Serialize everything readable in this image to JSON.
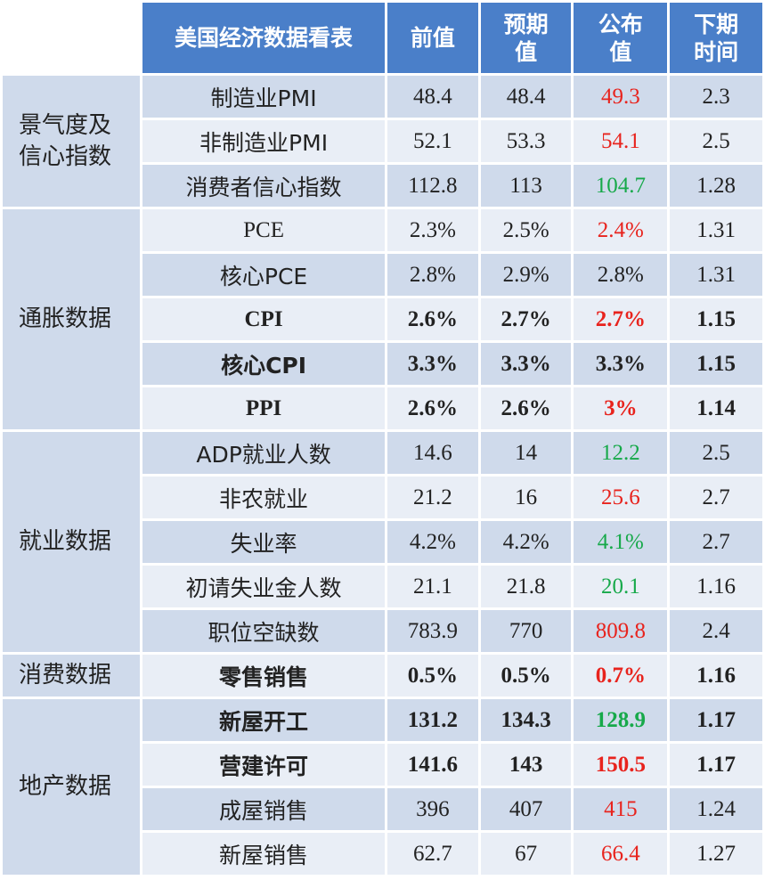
{
  "headers": [
    "美国经济数据看表",
    "前值",
    "预期\n值",
    "公布\n值",
    "下期\n时间"
  ],
  "groups": [
    {
      "name": "景气度及\n信心指数",
      "rows": [
        {
          "indicator": "制造业PMI",
          "prev": "48.4",
          "exp": "48.4",
          "actual": "49.3",
          "next": "2.3",
          "color": "red",
          "bold": false
        },
        {
          "indicator": "非制造业PMI",
          "prev": "52.1",
          "exp": "53.3",
          "actual": "54.1",
          "next": "2.5",
          "color": "red",
          "bold": false
        },
        {
          "indicator": "消费者信心指数",
          "prev": "112.8",
          "exp": "113",
          "actual": "104.7",
          "next": "1.28",
          "color": "green",
          "bold": false
        }
      ]
    },
    {
      "name": "通胀数据",
      "rows": [
        {
          "indicator": "PCE",
          "prev": "2.3%",
          "exp": "2.5%",
          "actual": "2.4%",
          "next": "1.31",
          "color": "red",
          "bold": false
        },
        {
          "indicator": "核心PCE",
          "prev": "2.8%",
          "exp": "2.9%",
          "actual": "2.8%",
          "next": "1.31",
          "color": "black",
          "bold": false
        },
        {
          "indicator": "CPI",
          "prev": "2.6%",
          "exp": "2.7%",
          "actual": "2.7%",
          "next": "1.15",
          "color": "red",
          "bold": true
        },
        {
          "indicator": "核心CPI",
          "prev": "3.3%",
          "exp": "3.3%",
          "actual": "3.3%",
          "next": "1.15",
          "color": "black",
          "bold": true
        },
        {
          "indicator": "PPI",
          "prev": "2.6%",
          "exp": "2.6%",
          "actual": "3%",
          "next": "1.14",
          "color": "red",
          "bold": true
        }
      ]
    },
    {
      "name": "就业数据",
      "rows": [
        {
          "indicator": "ADP就业人数",
          "prev": "14.6",
          "exp": "14",
          "actual": "12.2",
          "next": "2.5",
          "color": "green",
          "bold": false
        },
        {
          "indicator": "非农就业",
          "prev": "21.2",
          "exp": "16",
          "actual": "25.6",
          "next": "2.7",
          "color": "red",
          "bold": false
        },
        {
          "indicator": "失业率",
          "prev": "4.2%",
          "exp": "4.2%",
          "actual": "4.1%",
          "next": "2.7",
          "color": "green",
          "bold": false
        },
        {
          "indicator": "初请失业金人数",
          "prev": "21.1",
          "exp": "21.8",
          "actual": "20.1",
          "next": "1.16",
          "color": "green",
          "bold": false
        },
        {
          "indicator": "职位空缺数",
          "prev": "783.9",
          "exp": "770",
          "actual": "809.8",
          "next": "2.4",
          "color": "red",
          "bold": false
        }
      ]
    },
    {
      "name": "消费数据",
      "rows": [
        {
          "indicator": "零售销售",
          "prev": "0.5%",
          "exp": "0.5%",
          "actual": "0.7%",
          "next": "1.16",
          "color": "red",
          "bold": true
        }
      ]
    },
    {
      "name": "地产数据",
      "rows": [
        {
          "indicator": "新屋开工",
          "prev": "131.2",
          "exp": "134.3",
          "actual": "128.9",
          "next": "1.17",
          "color": "green",
          "bold": true
        },
        {
          "indicator": "营建许可",
          "prev": "141.6",
          "exp": "143",
          "actual": "150.5",
          "next": "1.17",
          "color": "red",
          "bold": true
        },
        {
          "indicator": "成屋销售",
          "prev": "396",
          "exp": "407",
          "actual": "415",
          "next": "1.24",
          "color": "red",
          "bold": false
        },
        {
          "indicator": "新屋销售",
          "prev": "62.7",
          "exp": "67",
          "actual": "66.4",
          "next": "1.27",
          "color": "red",
          "bold": false
        }
      ]
    }
  ],
  "colors": {
    "header_bg": "#4a7fc9",
    "row_shade_dark": "#cfdaeb",
    "row_shade_light": "#e9eef6",
    "up_red": "#e8231d",
    "down_green": "#17a94a"
  }
}
